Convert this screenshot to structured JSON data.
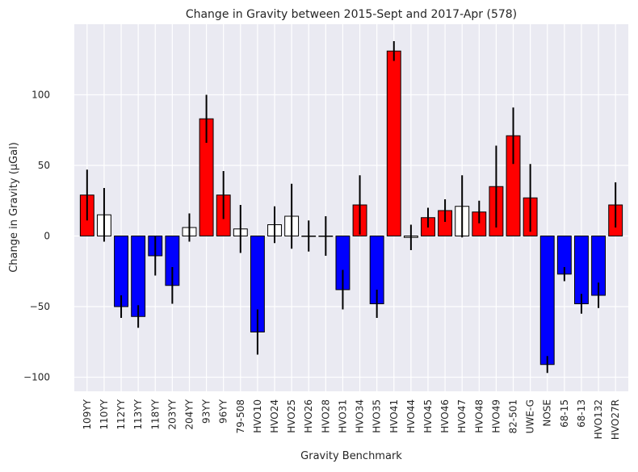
{
  "chart_data": {
    "type": "bar",
    "title": "Change in Gravity between 2015-Sept and 2017-Apr (578)",
    "xlabel": "Gravity Benchmark",
    "ylabel": "Change in Gravity (µGal)",
    "ylim": [
      -110,
      150
    ],
    "yticks": [
      -100,
      -50,
      0,
      50,
      100
    ],
    "grid": true,
    "colors": {
      "background": "#eaeaf2",
      "grid": "#ffffff",
      "positive": "#ff0000",
      "negative": "#0000ff",
      "insignificant": "#ffffff",
      "edge": "#000000",
      "errorbar": "#000000"
    },
    "categories": [
      "109YY",
      "110YY",
      "112YY",
      "113YY",
      "118YY",
      "203YY",
      "204YY",
      "93YY",
      "96YY",
      "79-508",
      "HVO10",
      "HVO24",
      "HVO25",
      "HVO26",
      "HVO28",
      "HVO31",
      "HVO34",
      "HVO35",
      "HVO41",
      "HVO44",
      "HVO45",
      "HVO46",
      "HVO47",
      "HVO48",
      "HVO49",
      "82-501",
      "UWE-G",
      "NOSE",
      "68-15",
      "68-13",
      "HVO132",
      "HVO27R"
    ],
    "values": [
      29,
      15,
      -50,
      -57,
      -14,
      -35,
      6,
      83,
      29,
      5,
      -68,
      8,
      14,
      0,
      0,
      -38,
      22,
      -48,
      131,
      -1,
      13,
      18,
      21,
      17,
      35,
      71,
      27,
      -91,
      -27,
      -48,
      -42,
      22
    ],
    "errors": [
      18,
      19,
      8,
      8,
      14,
      13,
      10,
      17,
      17,
      17,
      16,
      13,
      23,
      11,
      14,
      14,
      21,
      10,
      7,
      9,
      7,
      8,
      22,
      8,
      29,
      20,
      24,
      6,
      5,
      7,
      9,
      16
    ],
    "bar_colors": [
      "positive",
      "insignificant",
      "negative",
      "negative",
      "negative",
      "negative",
      "insignificant",
      "positive",
      "positive",
      "insignificant",
      "negative",
      "insignificant",
      "insignificant",
      "insignificant",
      "insignificant",
      "negative",
      "positive",
      "negative",
      "positive",
      "insignificant",
      "positive",
      "positive",
      "insignificant",
      "positive",
      "positive",
      "positive",
      "positive",
      "negative",
      "negative",
      "negative",
      "negative",
      "positive"
    ]
  }
}
